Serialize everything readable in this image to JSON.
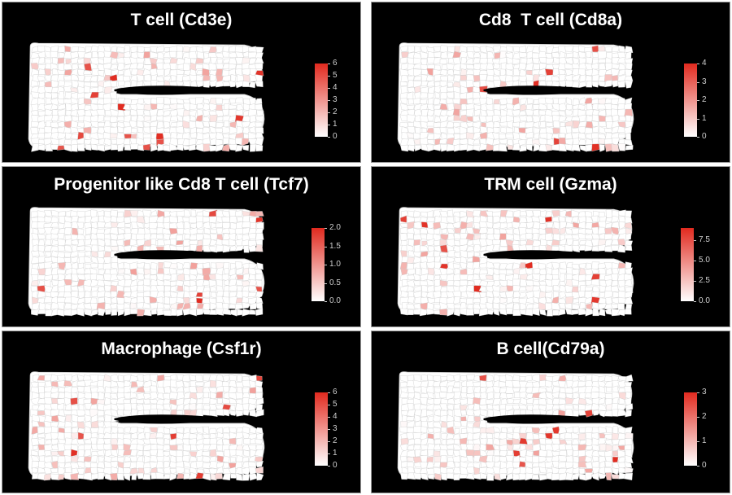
{
  "colors": {
    "low": "#ffffff",
    "high": "#e12a1f",
    "background": "#000000",
    "tissue": "#ffffff",
    "edges": "#c8c8c8"
  },
  "panels": [
    {
      "title": "T cell (Cd3e)",
      "legend": {
        "max": 6,
        "ticks": [
          "6",
          "5",
          "4",
          "3",
          "2",
          "1",
          "0"
        ]
      }
    },
    {
      "title": "Cd8  T cell (Cd8a)",
      "legend": {
        "max": 4,
        "ticks": [
          "4",
          "3",
          "2",
          "1",
          "0"
        ]
      }
    },
    {
      "title": "Progenitor like Cd8 T cell (Tcf7)",
      "legend": {
        "max": 2.0,
        "ticks": [
          "2.0",
          "1.5",
          "1.0",
          "0.5",
          "0.0"
        ]
      }
    },
    {
      "title": "TRM cell (Gzma)",
      "legend": {
        "max": 9,
        "ticks": [
          "7.5",
          "5.0",
          "2.5",
          "0.0"
        ]
      }
    },
    {
      "title": "Macrophage (Csf1r)",
      "legend": {
        "max": 6,
        "ticks": [
          "6",
          "5",
          "4",
          "3",
          "2",
          "1",
          "0"
        ]
      }
    },
    {
      "title": "B cell(Cd79a)",
      "legend": {
        "max": 3,
        "ticks": [
          "3",
          "2",
          "1",
          "0"
        ]
      }
    }
  ]
}
